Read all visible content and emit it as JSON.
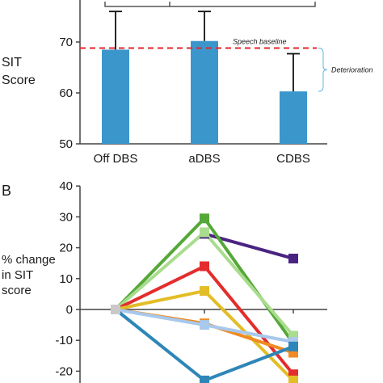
{
  "chart_data": [
    {
      "panel": "",
      "type": "bar",
      "ylabel": [
        "SIT",
        "Score"
      ],
      "ylim": [
        50,
        72
      ],
      "yticks": [
        50,
        60,
        70
      ],
      "categories": [
        "Off DBS",
        "aDBS",
        "CDBS"
      ],
      "values": [
        68.5,
        70.2,
        60.3
      ],
      "error_upper": [
        76,
        76,
        67.7
      ],
      "bar_color": "#3b96cc",
      "baseline": {
        "value": 68.8,
        "label": "Speech baseline",
        "color": "#e3262b"
      },
      "annotation": {
        "label": "Deterioration",
        "from": 68.8,
        "to": 60.3,
        "color": "#5eb4e6"
      }
    },
    {
      "panel": "B",
      "type": "line",
      "ylabel": [
        "% change",
        "in SIT",
        "score"
      ],
      "ylim": [
        -25,
        40
      ],
      "yticks": [
        -20,
        -10,
        0,
        10,
        20,
        30,
        40
      ],
      "x": [
        0,
        1,
        2
      ],
      "series": [
        {
          "color": "#4a2382",
          "points": [
            [
              1,
              24.5
            ],
            [
              2,
              16.5
            ]
          ]
        },
        {
          "color": "#55a838",
          "points": [
            [
              0,
              0
            ],
            [
              1,
              29.5
            ],
            [
              2,
              -11
            ]
          ]
        },
        {
          "color": "#a9dc8e",
          "points": [
            [
              0,
              0
            ],
            [
              1,
              25
            ],
            [
              2,
              -8.5
            ]
          ]
        },
        {
          "color": "#e42c2c",
          "points": [
            [
              0,
              0
            ],
            [
              1,
              14
            ],
            [
              2,
              -21
            ]
          ]
        },
        {
          "color": "#e3bd26",
          "points": [
            [
              0,
              0
            ],
            [
              1,
              6
            ],
            [
              2,
              -23
            ]
          ]
        },
        {
          "color": "#f08a24",
          "points": [
            [
              0,
              0
            ],
            [
              1,
              -4.5
            ],
            [
              2,
              -14
            ]
          ]
        },
        {
          "color": "#a8c8ec",
          "points": [
            [
              0,
              0
            ],
            [
              1,
              -5
            ],
            [
              2,
              -10.5
            ]
          ]
        },
        {
          "color": "#2e86b8",
          "points": [
            [
              0,
              0
            ],
            [
              1,
              -23
            ],
            [
              2,
              -12
            ]
          ]
        }
      ]
    }
  ]
}
